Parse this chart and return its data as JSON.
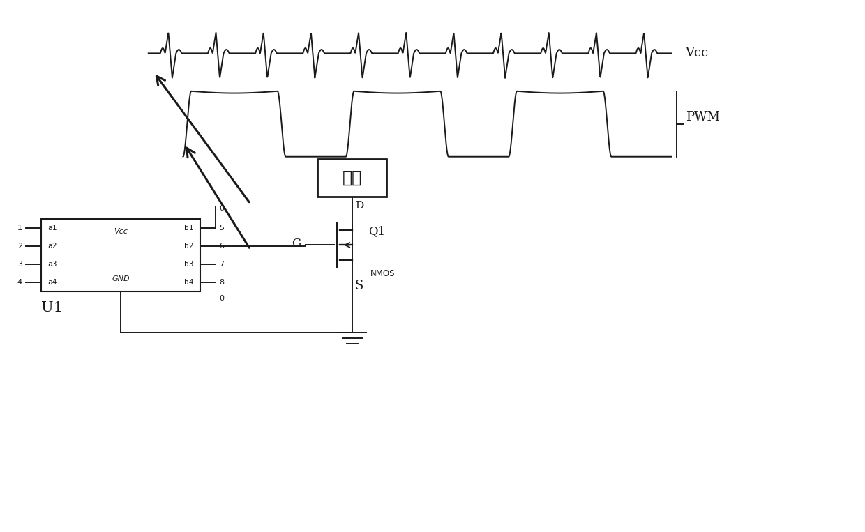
{
  "bg_color": "#ffffff",
  "line_color": "#1a1a1a",
  "fig_width": 12.4,
  "fig_height": 7.63,
  "vcc_label": "Vcc",
  "pwm_label": "PWM",
  "u1_label": "U1",
  "q1_label": "Q1",
  "nmos_label": "NMOS",
  "load_label": "负载",
  "g_label": "G",
  "d_label": "D",
  "s_label": "S",
  "xlim": [
    0,
    12.4
  ],
  "ylim": [
    0,
    7.63
  ]
}
